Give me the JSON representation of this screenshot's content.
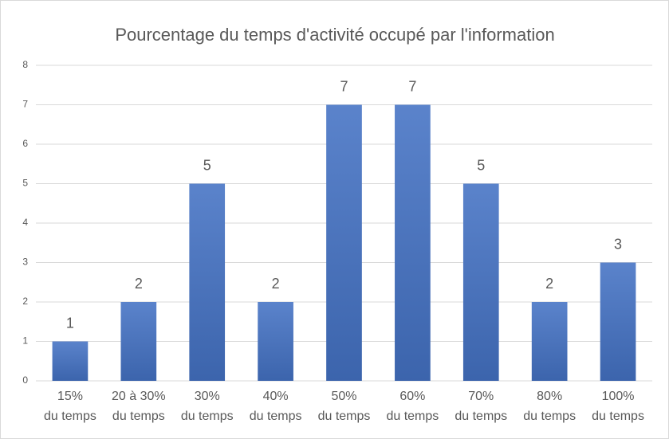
{
  "chart_data": {
    "type": "bar",
    "title": "Pourcentage du temps d'activité occupé par l'information",
    "categories": [
      [
        "15%",
        "du temps"
      ],
      [
        "20 à 30%",
        "du temps"
      ],
      [
        "30%",
        "du temps"
      ],
      [
        "40%",
        "du temps"
      ],
      [
        "50%",
        "du temps"
      ],
      [
        "60%",
        "du temps"
      ],
      [
        "70%",
        "du temps"
      ],
      [
        "80%",
        "du temps"
      ],
      [
        "100%",
        "du temps"
      ]
    ],
    "values": [
      1,
      2,
      5,
      2,
      7,
      7,
      5,
      2,
      3
    ],
    "color": "#4472c4",
    "ylim": [
      0,
      8
    ],
    "yticks": [
      0,
      1,
      2,
      3,
      4,
      5,
      6,
      7,
      8
    ],
    "grid": true
  }
}
